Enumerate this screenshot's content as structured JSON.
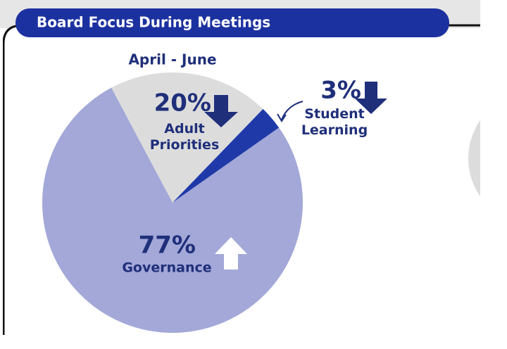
{
  "chart_data": {
    "type": "pie",
    "title": "Board Focus During Meetings",
    "subtitle": "April - June",
    "categories": [
      "Adult Priorities",
      "Student Learning",
      "Governance"
    ],
    "values": [
      20,
      3,
      77
    ],
    "value_labels": [
      "20%",
      "3%",
      "77%"
    ],
    "colors": [
      "#dcdcdc",
      "#1f3aa8",
      "#a3a8d8"
    ]
  }
}
